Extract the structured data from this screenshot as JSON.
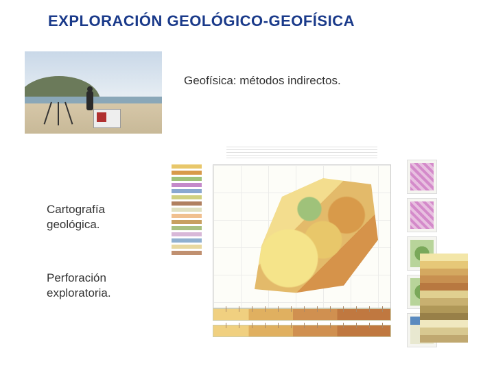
{
  "title": "EXPLORACIÓN GEOLÓGICO-GEOFÍSICA",
  "subtitle": "Geofísica: métodos indirectos.",
  "label_cartografia_l1": "Cartografía",
  "label_cartografia_l2": "geológica.",
  "label_perforacion_l1": "Perforación",
  "label_perforacion_l2": "exploratoria.",
  "colors": {
    "title": "#1a3a8a",
    "text": "#333333",
    "background": "#ffffff"
  },
  "legend_colors": [
    "#e8c76a",
    "#d89a4a",
    "#9fc27a",
    "#c48aca",
    "#8aa8d0",
    "#d0d080",
    "#b08060",
    "#e0e0c0",
    "#f0c090",
    "#c8a060",
    "#a8c080",
    "#d8b8d8",
    "#90b0d0",
    "#e8d8a0",
    "#c09070"
  ],
  "strat_colors": [
    "#f3e6a8",
    "#e6c878",
    "#d4a860",
    "#c89050",
    "#b87840",
    "#e0d090",
    "#c8b070",
    "#b09858",
    "#988048",
    "#f0e8c0",
    "#d8c890",
    "#c0a870"
  ],
  "geologic_palette": [
    "#f5e48a",
    "#e8c76a",
    "#d89a4a",
    "#9fc27a",
    "#c97a3a",
    "#f3dd8e",
    "#e3ba6a",
    "#d6934a"
  ]
}
